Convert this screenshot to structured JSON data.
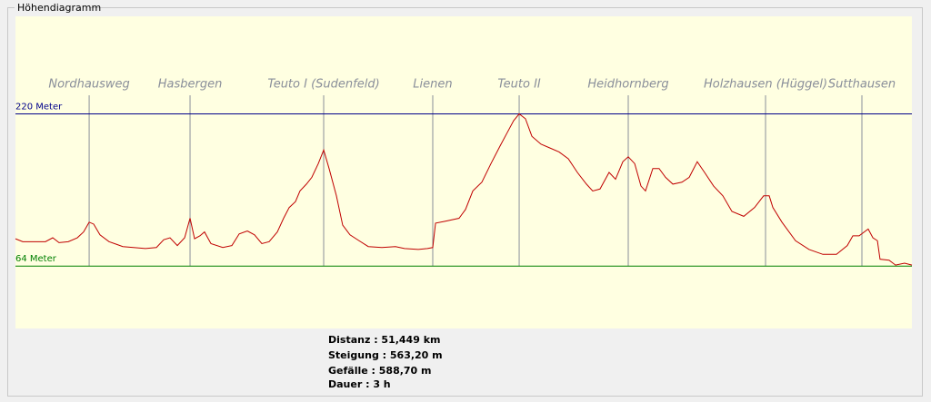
{
  "window": {
    "group_title": "Höhendiagramm"
  },
  "chart_data": {
    "type": "line",
    "x": [
      0,
      0.42,
      1.72,
      2.14,
      2.5,
      3.03,
      3.55,
      3.91,
      4.23,
      4.49,
      4.85,
      5.37,
      6.16,
      7.46,
      8.09,
      8.51,
      8.87,
      9.29,
      9.71,
      10.02,
      10.28,
      10.59,
      10.85,
      11.22,
      11.9,
      12.42,
      12.84,
      13.31,
      13.72,
      14.14,
      14.56,
      15.03,
      15.39,
      15.71,
      16.07,
      16.33,
      16.7,
      17.01,
      17.38,
      17.69,
      18.0,
      18.42,
      18.78,
      19.2,
      19.72,
      20.25,
      21.03,
      21.81,
      22.33,
      23.12,
      23.64,
      23.95,
      24.11,
      24.68,
      25.46,
      25.83,
      26.25,
      26.77,
      27.29,
      27.81,
      28.23,
      28.59,
      28.91,
      29.27,
      29.64,
      30.16,
      30.68,
      31.2,
      31.73,
      32.25,
      32.77,
      33.13,
      33.55,
      34.07,
      34.44,
      34.86,
      35.17,
      35.54,
      35.9,
      36.16,
      36.58,
      36.94,
      37.31,
      37.73,
      38.25,
      38.67,
      39.13,
      39.55,
      40.07,
      40.6,
      41.12,
      41.8,
      42.42,
      42.94,
      43.26,
      43.47,
      43.99,
      44.77,
      45.55,
      46.34,
      47.12,
      47.74,
      48.06,
      48.42,
      48.94,
      49.21,
      49.47,
      49.62,
      50.14,
      50.51,
      51.03,
      51.45
    ],
    "series": [
      {
        "color": "#c00000",
        "values": [
          92,
          89,
          89,
          93,
          88,
          89,
          93,
          99,
          109,
          107,
          96,
          89,
          84,
          82,
          83,
          91,
          93,
          85,
          93,
          113,
          92,
          95,
          99,
          87,
          83,
          85,
          97,
          100,
          96,
          87,
          89,
          99,
          113,
          124,
          130,
          141,
          148,
          155,
          169,
          183,
          164,
          136,
          106,
          96,
          90,
          84,
          83,
          84,
          82,
          81,
          82,
          83,
          108,
          110,
          113,
          122,
          141,
          150,
          169,
          187,
          201,
          213,
          220,
          215,
          197,
          189,
          185,
          181,
          174,
          160,
          148,
          141,
          143,
          160,
          153,
          171,
          176,
          169,
          146,
          141,
          164,
          164,
          155,
          148,
          150,
          155,
          171,
          160,
          146,
          136,
          120,
          115,
          124,
          136,
          136,
          124,
          109,
          90,
          81,
          76,
          76,
          85,
          95,
          95,
          102,
          93,
          90,
          71,
          70,
          65,
          67,
          65
        ]
      }
    ],
    "xlim": [
      0,
      51.45
    ],
    "ylim": [
      0,
      320
    ],
    "background": "#ffffe1",
    "reference_lines": [
      {
        "value": 220,
        "label": "220 Meter",
        "color": "#00008b"
      },
      {
        "value": 64,
        "label": "64 Meter",
        "color": "#008000"
      }
    ],
    "markers": [
      {
        "x": 4.23,
        "label": "Nordhausweg"
      },
      {
        "x": 10.02,
        "label": "Hasbergen"
      },
      {
        "x": 17.69,
        "label": "Teuto I (Sudenfeld)"
      },
      {
        "x": 23.95,
        "label": "Lienen"
      },
      {
        "x": 28.91,
        "label": "Teuto II"
      },
      {
        "x": 35.17,
        "label": "Heidhornberg"
      },
      {
        "x": 43.05,
        "label": "Holzhausen (Hüggel)"
      },
      {
        "x": 48.58,
        "label": "Sutthausen"
      }
    ],
    "marker_color": "#8a8f9a"
  },
  "stats": [
    "Distanz : 51,449 km",
    "Steigung : 563,20 m",
    "Gefälle : 588,70 m",
    "Dauer : 3 h"
  ]
}
